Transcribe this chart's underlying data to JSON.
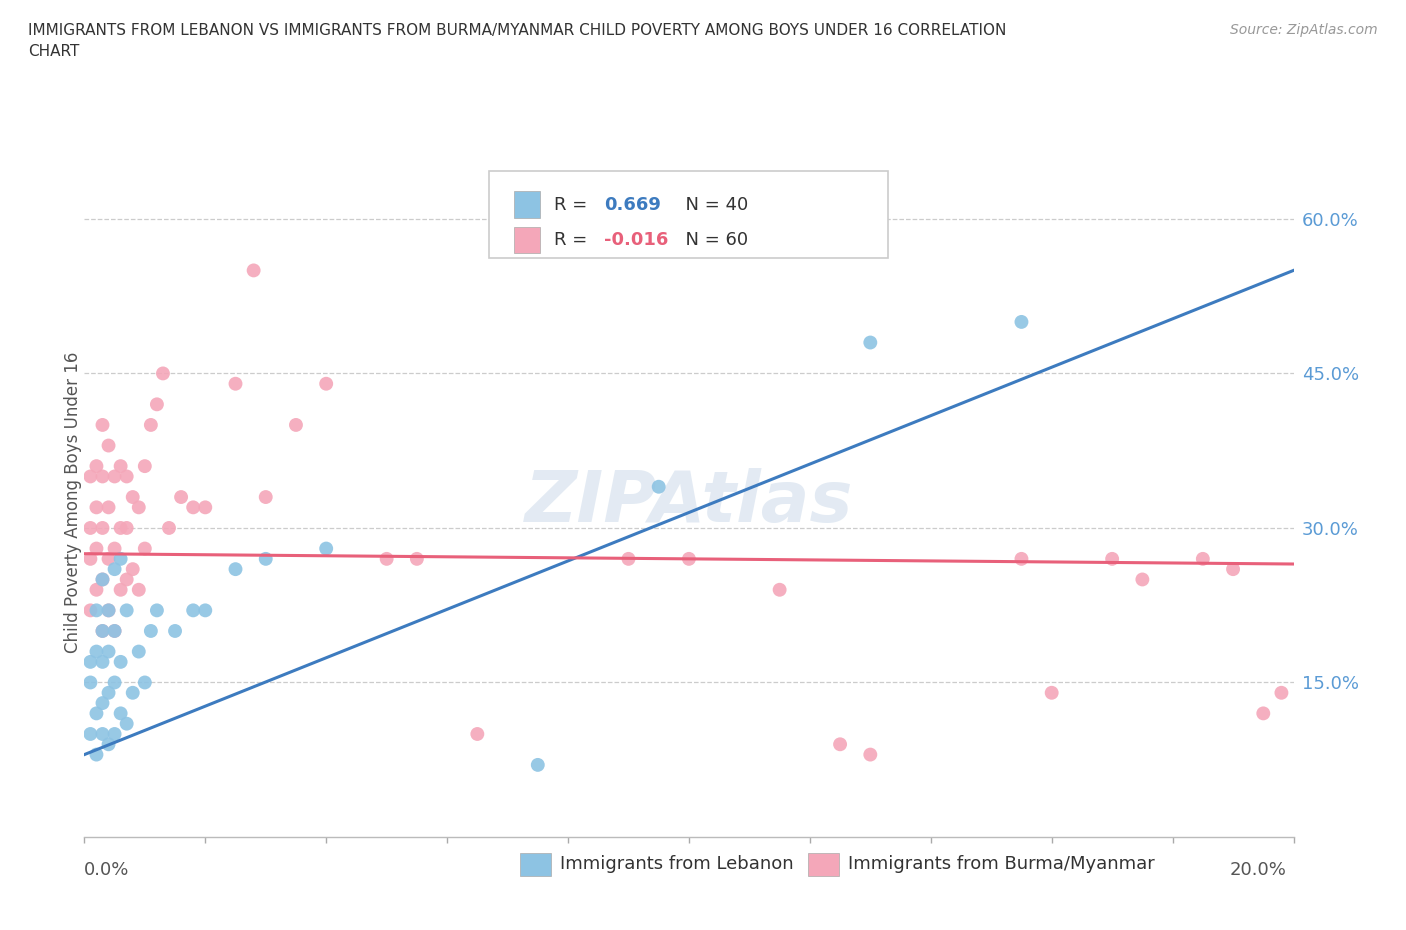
{
  "title": "IMMIGRANTS FROM LEBANON VS IMMIGRANTS FROM BURMA/MYANMAR CHILD POVERTY AMONG BOYS UNDER 16 CORRELATION\nCHART",
  "source": "Source: ZipAtlas.com",
  "ylabel": "Child Poverty Among Boys Under 16",
  "yticks": [
    0.0,
    0.15,
    0.3,
    0.45,
    0.6
  ],
  "ytick_labels": [
    "",
    "15.0%",
    "30.0%",
    "45.0%",
    "60.0%"
  ],
  "xlim": [
    0.0,
    0.2
  ],
  "ylim": [
    0.0,
    0.65
  ],
  "watermark": "ZIPAtlas",
  "blue_color": "#8dc3e3",
  "pink_color": "#f4a7b9",
  "blue_line_color": "#3d7bbf",
  "pink_line_color": "#e8607a",
  "blue_r": "0.669",
  "blue_n": "40",
  "pink_r": "-0.016",
  "pink_n": "60",
  "lebanon_points_x": [
    0.001,
    0.001,
    0.001,
    0.002,
    0.002,
    0.002,
    0.002,
    0.003,
    0.003,
    0.003,
    0.003,
    0.003,
    0.004,
    0.004,
    0.004,
    0.004,
    0.005,
    0.005,
    0.005,
    0.005,
    0.006,
    0.006,
    0.006,
    0.007,
    0.007,
    0.008,
    0.009,
    0.01,
    0.011,
    0.012,
    0.015,
    0.018,
    0.02,
    0.025,
    0.03,
    0.04,
    0.075,
    0.095,
    0.13,
    0.155
  ],
  "lebanon_points_y": [
    0.1,
    0.15,
    0.17,
    0.08,
    0.12,
    0.18,
    0.22,
    0.1,
    0.13,
    0.17,
    0.2,
    0.25,
    0.09,
    0.14,
    0.18,
    0.22,
    0.1,
    0.15,
    0.2,
    0.26,
    0.12,
    0.17,
    0.27,
    0.11,
    0.22,
    0.14,
    0.18,
    0.15,
    0.2,
    0.22,
    0.2,
    0.22,
    0.22,
    0.26,
    0.27,
    0.28,
    0.07,
    0.34,
    0.48,
    0.5
  ],
  "burma_points_x": [
    0.001,
    0.001,
    0.001,
    0.001,
    0.002,
    0.002,
    0.002,
    0.002,
    0.003,
    0.003,
    0.003,
    0.003,
    0.003,
    0.004,
    0.004,
    0.004,
    0.004,
    0.005,
    0.005,
    0.005,
    0.006,
    0.006,
    0.006,
    0.007,
    0.007,
    0.007,
    0.008,
    0.008,
    0.009,
    0.009,
    0.01,
    0.01,
    0.011,
    0.012,
    0.013,
    0.014,
    0.016,
    0.018,
    0.02,
    0.025,
    0.028,
    0.03,
    0.035,
    0.04,
    0.05,
    0.055,
    0.065,
    0.09,
    0.1,
    0.115,
    0.125,
    0.13,
    0.155,
    0.16,
    0.17,
    0.175,
    0.185,
    0.19,
    0.195,
    0.198
  ],
  "burma_points_y": [
    0.22,
    0.27,
    0.3,
    0.35,
    0.24,
    0.28,
    0.32,
    0.36,
    0.2,
    0.25,
    0.3,
    0.35,
    0.4,
    0.22,
    0.27,
    0.32,
    0.38,
    0.2,
    0.28,
    0.35,
    0.24,
    0.3,
    0.36,
    0.25,
    0.3,
    0.35,
    0.26,
    0.33,
    0.24,
    0.32,
    0.28,
    0.36,
    0.4,
    0.42,
    0.45,
    0.3,
    0.33,
    0.32,
    0.32,
    0.44,
    0.55,
    0.33,
    0.4,
    0.44,
    0.27,
    0.27,
    0.1,
    0.27,
    0.27,
    0.24,
    0.09,
    0.08,
    0.27,
    0.14,
    0.27,
    0.25,
    0.27,
    0.26,
    0.12,
    0.14
  ],
  "blue_line_x0": 0.0,
  "blue_line_y0": 0.08,
  "blue_line_x1": 0.2,
  "blue_line_y1": 0.55,
  "pink_line_x0": 0.0,
  "pink_line_y0": 0.275,
  "pink_line_x1": 0.2,
  "pink_line_y1": 0.265
}
